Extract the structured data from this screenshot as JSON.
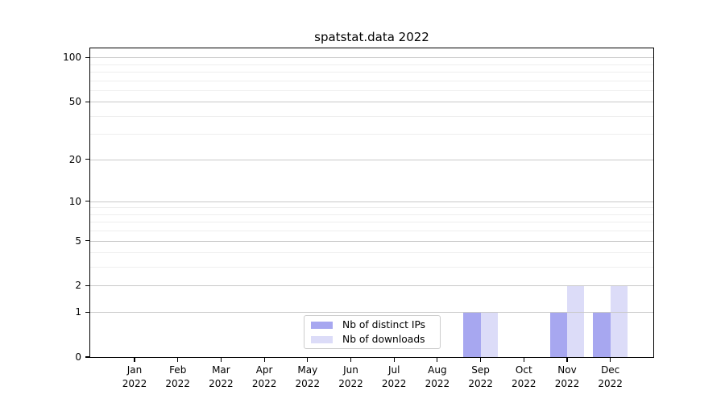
{
  "figure": {
    "background": "#ffffff",
    "axis_color": "#000000"
  },
  "chart_data": {
    "type": "bar",
    "title": "spatstat.data 2022",
    "xlabel": "",
    "ylabel": "",
    "x_tick_labels": [
      {
        "month": "Jan",
        "year": "2022"
      },
      {
        "month": "Feb",
        "year": "2022"
      },
      {
        "month": "Mar",
        "year": "2022"
      },
      {
        "month": "Apr",
        "year": "2022"
      },
      {
        "month": "May",
        "year": "2022"
      },
      {
        "month": "Jun",
        "year": "2022"
      },
      {
        "month": "Jul",
        "year": "2022"
      },
      {
        "month": "Aug",
        "year": "2022"
      },
      {
        "month": "Sep",
        "year": "2022"
      },
      {
        "month": "Oct",
        "year": "2022"
      },
      {
        "month": "Nov",
        "year": "2022"
      },
      {
        "month": "Dec",
        "year": "2022"
      }
    ],
    "series": [
      {
        "name": "Nb of distinct IPs",
        "color": "#a7a7f0",
        "values": [
          0,
          0,
          0,
          0,
          0,
          0,
          0,
          0,
          1,
          0,
          1,
          1
        ]
      },
      {
        "name": "Nb of downloads",
        "color": "#dcdcf8",
        "values": [
          0,
          0,
          0,
          0,
          0,
          0,
          0,
          0,
          1,
          0,
          2,
          2
        ]
      }
    ],
    "y_scale": "log1p",
    "y_tick_values": [
      0,
      1,
      2,
      5,
      10,
      20,
      50,
      100
    ],
    "y_minor_gridline_values": [
      3,
      4,
      6,
      7,
      8,
      9,
      30,
      40,
      60,
      70,
      80,
      90
    ],
    "ylim": [
      0,
      115
    ],
    "grid": {
      "major_color": "#c9c9c9",
      "minor_color": "#eeeeee",
      "grid_on": true
    },
    "legend": {
      "position": "bottom-center",
      "border_color": "#cccccc"
    }
  }
}
